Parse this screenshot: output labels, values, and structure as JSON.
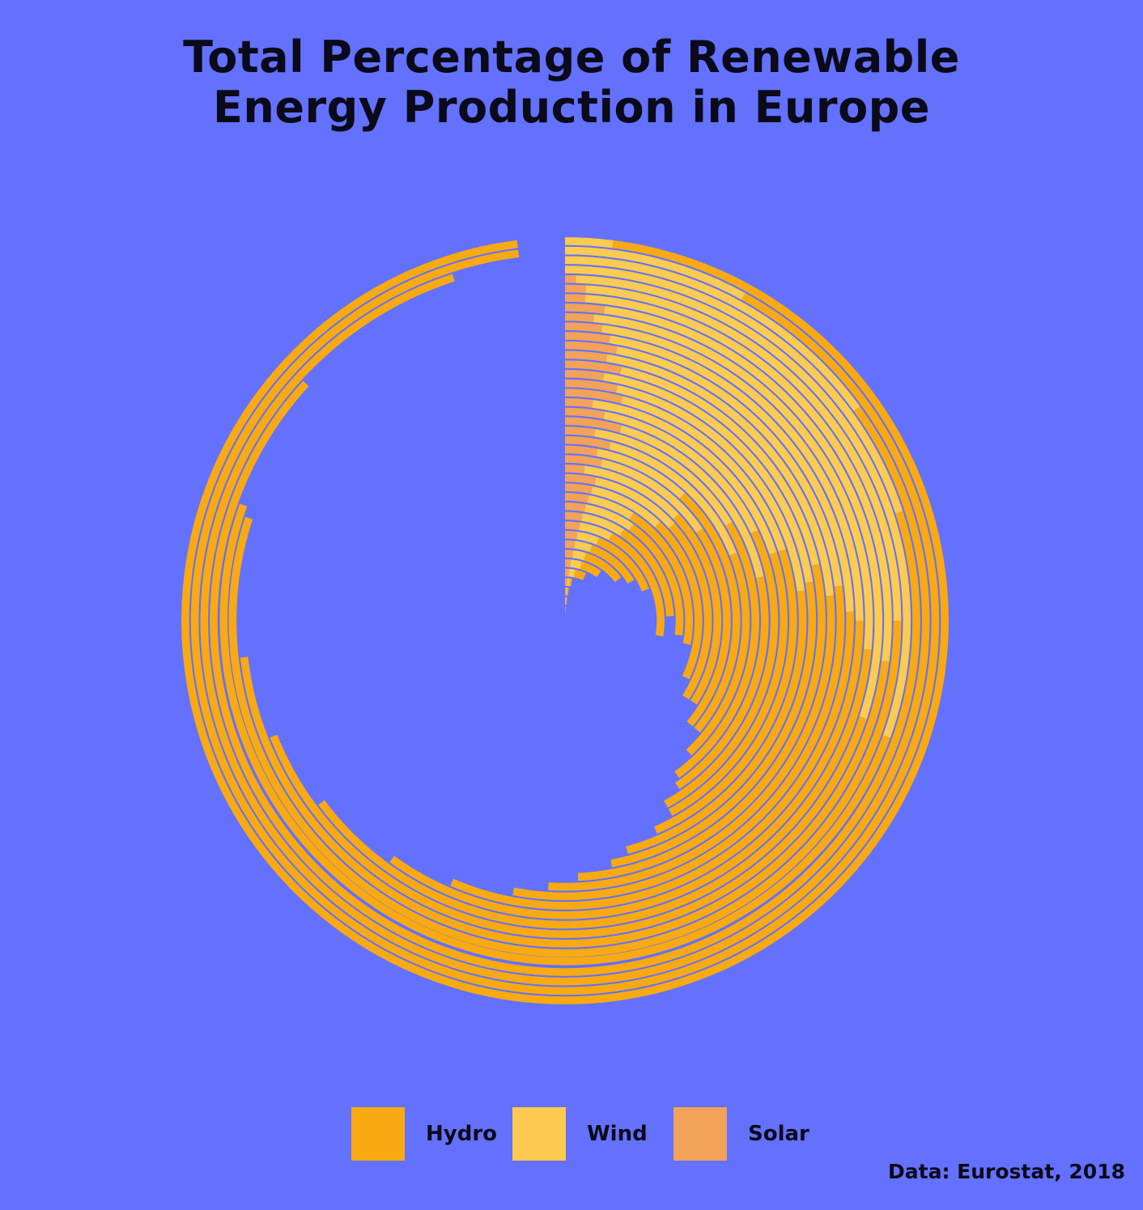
{
  "title_lines": [
    "Total Percentage of Renewable",
    "Energy Production in Europe"
  ],
  "source": "Data: Eurostat, 2018",
  "colors": {
    "background": "#6371FD",
    "Hydro": "#F9AA12",
    "Wind": "#FCCB4F",
    "Solar": "#F2A259"
  },
  "legend": [
    {
      "label": "Hydro",
      "color": "#F9AA12"
    },
    {
      "label": "Wind",
      "color": "#FCCB4F"
    },
    {
      "label": "Solar",
      "color": "#F2A259"
    }
  ],
  "chart_data": {
    "type": "radial-stacked-bar",
    "title": "Total Percentage of Renewable Energy Production in Europe",
    "unit": "percent of full circle",
    "series_order": [
      "Hydro",
      "Wind",
      "Solar"
    ],
    "note": "Bars are ordered from the innermost ring (index 0) to the outermost ring; each bar starts at 12 o'clock and stacks Solar, Wind, Hydro clockwise.",
    "bars": [
      {
        "Solar": 0.1,
        "Wind": 0.3,
        "Hydro": 0.3
      },
      {
        "Solar": 0.4,
        "Wind": 0.5,
        "Hydro": 0.5
      },
      {
        "Solar": 0.6,
        "Wind": 0.6,
        "Hydro": 0.6
      },
      {
        "Solar": 0.9,
        "Wind": 0.9,
        "Hydro": 0.9
      },
      {
        "Solar": 1.2,
        "Wind": 2.0,
        "Hydro": 3.4
      },
      {
        "Solar": 1.5,
        "Wind": 3.0,
        "Hydro": 5.5
      },
      {
        "Solar": 1.8,
        "Wind": 3.0,
        "Hydro": 9.7
      },
      {
        "Solar": 2.0,
        "Wind": 3.5,
        "Hydro": 11.0
      },
      {
        "Solar": 2.2,
        "Wind": 4.0,
        "Hydro": 13.0
      },
      {
        "Solar": 2.4,
        "Wind": 5.5,
        "Hydro": 19.6
      },
      {
        "Solar": 2.6,
        "Wind": 6.5,
        "Hydro": 15.2
      },
      {
        "Solar": 2.8,
        "Wind": 7.0,
        "Hydro": 17.2
      },
      {
        "Solar": 3.0,
        "Wind": 6.0,
        "Hydro": 19.0
      },
      {
        "Solar": 3.2,
        "Wind": 9.0,
        "Hydro": 19.8
      },
      {
        "Solar": 3.4,
        "Wind": 10.0,
        "Hydro": 20.6
      },
      {
        "Solar": 2.0,
        "Wind": 11.0,
        "Hydro": 21.0
      },
      {
        "Solar": 3.6,
        "Wind": 12.0,
        "Hydro": 20.4
      },
      {
        "Solar": 3.0,
        "Wind": 9.0,
        "Hydro": 24.0
      },
      {
        "Solar": 4.0,
        "Wind": 15.0,
        "Hydro": 19.0
      },
      {
        "Solar": 2.5,
        "Wind": 14.0,
        "Hydro": 23.5
      },
      {
        "Solar": 4.5,
        "Wind": 17.0,
        "Hydro": 19.0
      },
      {
        "Solar": 3.0,
        "Wind": 15.0,
        "Hydro": 24.0
      },
      {
        "Solar": 2.0,
        "Wind": 18.0,
        "Hydro": 22.0
      },
      {
        "Solar": 4.0,
        "Wind": 16.0,
        "Hydro": 23.5
      },
      {
        "Solar": 3.5,
        "Wind": 19.5,
        "Hydro": 22.8
      },
      {
        "Solar": 2.5,
        "Wind": 20.0,
        "Hydro": 24.5
      },
      {
        "Solar": 3.5,
        "Wind": 18.0,
        "Hydro": 27.7
      },
      {
        "Solar": 2.5,
        "Wind": 21.0,
        "Hydro": 27.5
      },
      {
        "Solar": 3.0,
        "Wind": 20.0,
        "Hydro": 30.0
      },
      {
        "Solar": 2.5,
        "Wind": 22.0,
        "Hydro": 32.0
      },
      {
        "Solar": 2.0,
        "Wind": 23.0,
        "Hydro": 35.0
      },
      {
        "Solar": 1.5,
        "Wind": 25.0,
        "Hydro": 38.3
      },
      {
        "Solar": 2.0,
        "Wind": 28.0,
        "Hydro": 39.0
      },
      {
        "Solar": 1.0,
        "Wind": 26.0,
        "Hydro": 46.2
      },
      {
        "Solar": 1.0,
        "Wind": 24.0,
        "Hydro": 55.0
      },
      {
        "Solar": 0.5,
        "Wind": 30.0,
        "Hydro": 50.0
      },
      {
        "Solar": 0.0,
        "Wind": 20.0,
        "Hydro": 66.8
      },
      {
        "Solar": 0.0,
        "Wind": 15.0,
        "Hydro": 80.0
      },
      {
        "Solar": 0.0,
        "Wind": 8.0,
        "Hydro": 90.0
      },
      {
        "Solar": 0.0,
        "Wind": 2.0,
        "Hydro": 96.0
      }
    ]
  }
}
